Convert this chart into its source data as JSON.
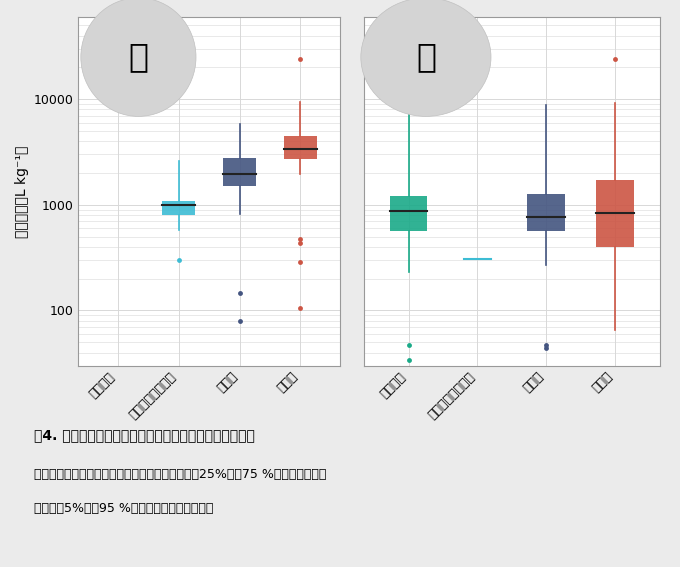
{
  "title_caption": "図4. 湖と河川における淡水魚の放射性セシウム移行係数",
  "caption_line2": "箱ひげ図の中央の線は中央値、箱の上端と下端は25%点と75 %点、ひげの上端",
  "caption_line3": "と下端は5%点と95 %点、点は外れ値を表す。",
  "ylabel": "移行係数（L kg⁻¹）",
  "categories": [
    "藻類食魚",
    "プランクトン食魚",
    "雑食魚",
    "魚食魚"
  ],
  "panel_labels": [
    "湖",
    "川"
  ],
  "background_color": "#ebebeb",
  "plot_bg_color": "#ffffff",
  "grid_color": "#d8d8d8",
  "lake_boxes": [
    null,
    {
      "color": "#3dbcd4",
      "q1": 800,
      "median": 990,
      "q3": 1080,
      "whislo": 580,
      "whishi": 2600,
      "fliers": [
        300
      ]
    },
    {
      "color": "#445580",
      "q1": 1500,
      "median": 1950,
      "q3": 2800,
      "whislo": 820,
      "whishi": 5800,
      "fliers": [
        80,
        145
      ]
    },
    {
      "color": "#cc5544",
      "q1": 2700,
      "median": 3400,
      "q3": 4500,
      "whislo": 1950,
      "whishi": 9500,
      "fliers": [
        105,
        290,
        440,
        470,
        24000
      ]
    }
  ],
  "river_boxes": [
    {
      "color": "#1aaa88",
      "q1": 570,
      "median": 870,
      "q3": 1220,
      "whislo": 230,
      "whishi": 12500,
      "fliers": [
        47,
        34
      ]
    },
    {
      "color": "#3dbcd4",
      "q1": 310,
      "median": 310,
      "q3": 310,
      "whislo": 310,
      "whishi": 310,
      "fliers": [],
      "is_line": true
    },
    {
      "color": "#445580",
      "q1": 560,
      "median": 760,
      "q3": 1270,
      "whislo": 270,
      "whishi": 8800,
      "fliers": [
        44,
        47
      ]
    },
    {
      "color": "#cc5544",
      "q1": 400,
      "median": 840,
      "q3": 1720,
      "whislo": 65,
      "whishi": 9200,
      "fliers": [
        24000
      ]
    }
  ],
  "ylim_log": [
    30,
    60000
  ],
  "yticks": [
    100,
    1000,
    10000
  ],
  "box_width": 0.55,
  "figure_bg": "#ebebeb"
}
